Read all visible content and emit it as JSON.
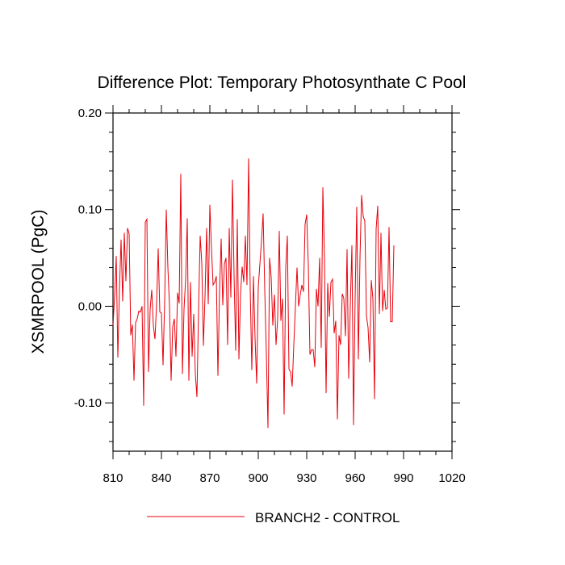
{
  "chart_data": {
    "type": "line",
    "title": "Difference Plot: Temporary Photosynthate C Pool",
    "xlabel": "",
    "ylabel": "XSMRPOOL  (PgC)",
    "xlim": [
      810,
      1020
    ],
    "ylim": [
      -0.15,
      0.2
    ],
    "x_ticks": [
      810,
      840,
      870,
      900,
      930,
      960,
      990,
      1020
    ],
    "x_tick_labels": [
      "810",
      "840",
      "870",
      "900",
      "930",
      "960",
      "990",
      "1020"
    ],
    "y_ticks": [
      -0.1,
      0.0,
      0.1,
      0.2
    ],
    "y_tick_labels": [
      "-0.10",
      "0.00",
      "0.10",
      "0.20"
    ],
    "grid": false,
    "legend_position": "bottom",
    "series": [
      {
        "name": "BRANCH2 - CONTROL",
        "color": "#e8000b",
        "x_start": 810,
        "x_step": 1,
        "values": [
          -0.02,
          0.01,
          0.052,
          -0.053,
          0.018,
          0.069,
          0.005,
          0.076,
          0.026,
          0.081,
          0.075,
          -0.03,
          -0.019,
          -0.077,
          -0.017,
          -0.013,
          -0.005,
          -0.006,
          0.0,
          -0.103,
          0.087,
          0.09,
          -0.068,
          -0.003,
          0.017,
          -0.02,
          -0.034,
          0.002,
          0.06,
          -0.006,
          -0.007,
          -0.061,
          0.005,
          0.1,
          0.04,
          0.0,
          -0.077,
          -0.021,
          -0.013,
          -0.052,
          0.014,
          0.003,
          0.137,
          -0.07,
          -0.003,
          0.028,
          0.091,
          -0.077,
          0.025,
          -0.052,
          -0.008,
          -0.07,
          -0.094,
          -0.005,
          0.073,
          0.045,
          -0.041,
          0.01,
          0.081,
          0.002,
          0.105,
          0.06,
          0.022,
          0.025,
          0.031,
          -0.072,
          0.015,
          0.07,
          0.001,
          0.044,
          0.05,
          -0.04,
          0.081,
          0.009,
          0.131,
          0.032,
          -0.046,
          0.09,
          -0.055,
          0.012,
          0.041,
          0.025,
          0.073,
          0.022,
          0.153,
          0.018,
          -0.066,
          0.031,
          -0.033,
          -0.08,
          0.02,
          0.044,
          0.068,
          0.096,
          0.017,
          -0.05,
          -0.126,
          0.05,
          0.03,
          -0.02,
          0.012,
          -0.04,
          -0.013,
          0.078,
          -0.015,
          0.008,
          -0.112,
          0.04,
          0.073,
          -0.065,
          -0.068,
          -0.083,
          -0.04,
          0.0,
          0.04,
          0.0,
          0.012,
          0.022,
          0.015,
          0.085,
          0.095,
          0.042,
          -0.05,
          -0.045,
          -0.045,
          -0.063,
          0.018,
          0.0,
          0.05,
          -0.043,
          0.123,
          0.05,
          -0.09,
          0.024,
          -0.011,
          0.025,
          0.028,
          -0.028,
          -0.015,
          -0.117,
          -0.03,
          -0.04,
          0.013,
          0.008,
          -0.031,
          0.059,
          -0.075,
          0.0,
          0.063,
          -0.123,
          0.01,
          0.103,
          -0.055,
          0.05,
          0.115,
          0.093,
          0.088,
          -0.01,
          -0.022,
          -0.058,
          0.027,
          0.008,
          -0.096,
          0.08,
          0.104,
          -0.008,
          0.076,
          -0.005,
          0.017,
          -0.003,
          -0.002,
          0.082,
          -0.016,
          -0.016,
          0.063
        ]
      }
    ]
  }
}
